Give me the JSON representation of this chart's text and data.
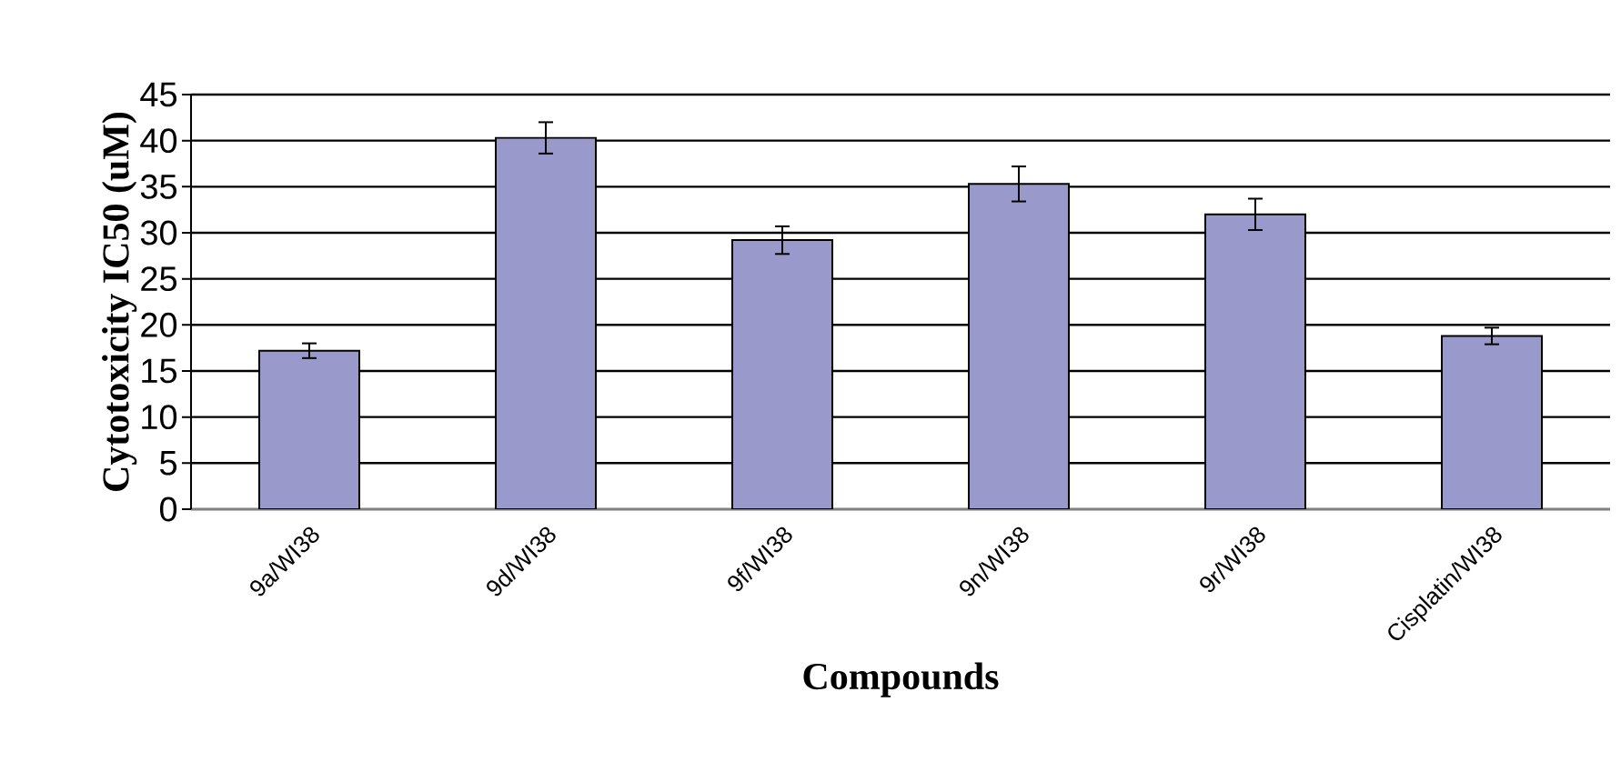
{
  "chart_data": {
    "type": "bar",
    "xlabel": "Compounds",
    "ylabel": "Cytotoxicity IC50 (uM)",
    "categories": [
      "9a/WI38",
      "9d/WI38",
      "9f/WI38",
      "9n/WI38",
      "9r/WI38",
      "Cisplatin/WI38"
    ],
    "values": [
      17.2,
      40.3,
      29.2,
      35.3,
      32.0,
      18.8
    ],
    "errors": [
      0.8,
      1.7,
      1.5,
      1.9,
      1.7,
      0.9
    ],
    "color": "#9999cc",
    "ylim": [
      0,
      45
    ],
    "yticks": [
      0,
      5,
      10,
      15,
      20,
      25,
      30,
      35,
      40,
      45
    ],
    "grid": "y"
  }
}
